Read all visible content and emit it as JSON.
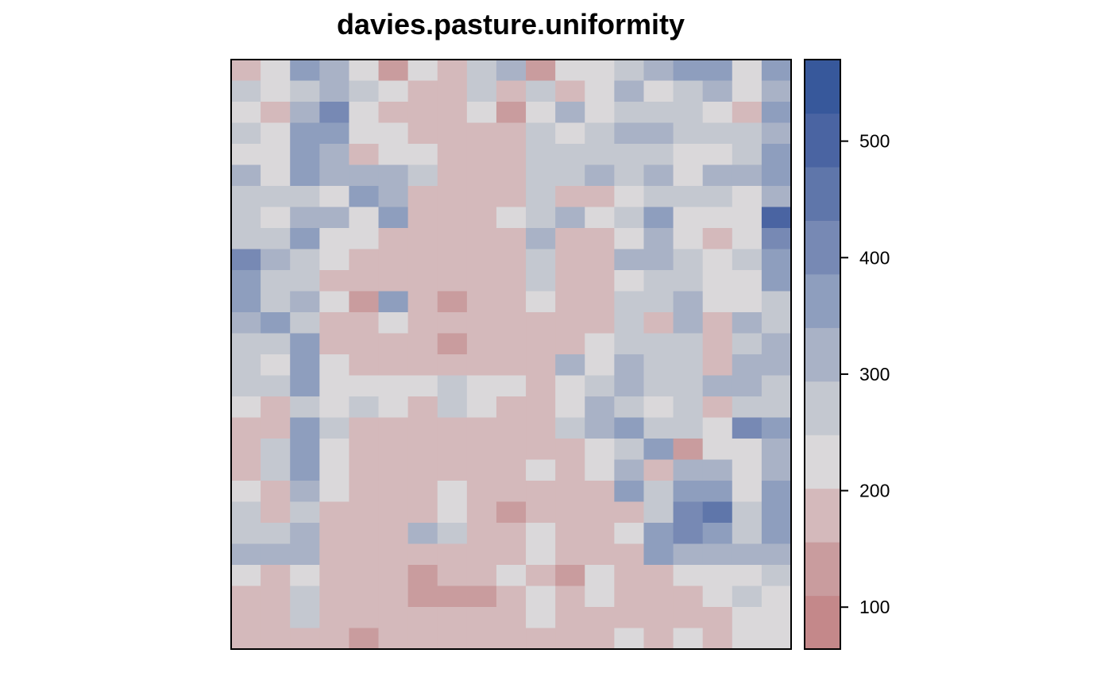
{
  "chart_data": {
    "type": "heatmap",
    "title": "davies.pasture.uniformity",
    "colorbar": {
      "ticks": [
        100,
        200,
        300,
        400,
        500
      ],
      "range": [
        64,
        570
      ],
      "bins": 11,
      "colors": [
        "#c4888a",
        "#c99c9e",
        "#d4b9bb",
        "#dad8da",
        "#c4c8d0",
        "#a9b2c6",
        "#8e9ebe",
        "#7789b4",
        "#5f76aa",
        "#4a64a2",
        "#37589b"
      ]
    },
    "grid": {
      "n_cols": 19,
      "n_rows": 28,
      "values": [
        [
          190,
          230,
          340,
          300,
          230,
          150,
          230,
          190,
          250,
          300,
          150,
          230,
          230,
          250,
          320,
          340,
          340,
          230,
          380
        ],
        [
          260,
          230,
          280,
          300,
          280,
          230,
          190,
          170,
          280,
          190,
          280,
          190,
          230,
          300,
          230,
          260,
          330,
          230,
          300
        ],
        [
          240,
          190,
          300,
          410,
          230,
          190,
          190,
          190,
          230,
          150,
          230,
          300,
          230,
          260,
          280,
          260,
          230,
          190,
          380
        ],
        [
          260,
          230,
          380,
          380,
          230,
          230,
          190,
          160,
          160,
          160,
          260,
          230,
          260,
          300,
          300,
          260,
          260,
          260,
          300
        ],
        [
          230,
          230,
          340,
          300,
          190,
          230,
          230,
          170,
          170,
          170,
          260,
          280,
          260,
          260,
          260,
          240,
          240,
          260,
          380
        ],
        [
          300,
          230,
          340,
          300,
          300,
          310,
          260,
          190,
          170,
          170,
          260,
          260,
          300,
          260,
          300,
          230,
          300,
          330,
          380
        ],
        [
          260,
          250,
          260,
          230,
          340,
          300,
          190,
          190,
          190,
          190,
          280,
          190,
          190,
          230,
          260,
          260,
          260,
          230,
          300
        ],
        [
          280,
          230,
          300,
          300,
          230,
          340,
          190,
          160,
          190,
          230,
          260,
          300,
          230,
          280,
          340,
          230,
          230,
          230,
          520
        ],
        [
          260,
          260,
          380,
          230,
          230,
          190,
          170,
          160,
          170,
          190,
          300,
          190,
          190,
          230,
          300,
          230,
          190,
          230,
          400
        ],
        [
          420,
          300,
          260,
          230,
          190,
          190,
          160,
          160,
          160,
          160,
          260,
          160,
          160,
          300,
          300,
          260,
          230,
          260,
          380
        ],
        [
          340,
          260,
          260,
          170,
          170,
          190,
          160,
          160,
          160,
          190,
          260,
          160,
          160,
          230,
          260,
          260,
          230,
          230,
          380
        ],
        [
          340,
          260,
          300,
          230,
          130,
          340,
          160,
          120,
          160,
          190,
          230,
          160,
          190,
          260,
          260,
          300,
          230,
          230,
          260
        ],
        [
          300,
          340,
          260,
          190,
          160,
          230,
          170,
          160,
          160,
          170,
          190,
          190,
          190,
          260,
          190,
          300,
          190,
          300,
          260
        ],
        [
          260,
          260,
          340,
          170,
          170,
          170,
          170,
          130,
          160,
          190,
          190,
          190,
          230,
          260,
          260,
          260,
          160,
          260,
          300
        ],
        [
          260,
          230,
          340,
          230,
          190,
          190,
          190,
          190,
          160,
          190,
          190,
          300,
          230,
          300,
          260,
          260,
          190,
          300,
          300
        ],
        [
          260,
          260,
          380,
          230,
          230,
          230,
          230,
          260,
          230,
          230,
          160,
          230,
          260,
          300,
          260,
          260,
          300,
          300,
          260
        ],
        [
          230,
          190,
          260,
          230,
          260,
          230,
          190,
          260,
          230,
          190,
          190,
          230,
          300,
          260,
          230,
          260,
          190,
          260,
          260
        ],
        [
          190,
          190,
          340,
          260,
          190,
          160,
          190,
          190,
          170,
          190,
          190,
          260,
          300,
          340,
          260,
          260,
          230,
          420,
          340
        ],
        [
          190,
          260,
          340,
          230,
          190,
          160,
          190,
          160,
          190,
          190,
          190,
          190,
          230,
          260,
          340,
          130,
          230,
          230,
          300
        ],
        [
          190,
          260,
          380,
          230,
          190,
          190,
          190,
          190,
          190,
          160,
          230,
          160,
          230,
          300,
          190,
          300,
          300,
          230,
          300
        ],
        [
          230,
          190,
          300,
          230,
          160,
          190,
          190,
          230,
          190,
          190,
          190,
          160,
          190,
          380,
          260,
          340,
          340,
          230,
          340
        ],
        [
          260,
          190,
          260,
          170,
          190,
          190,
          190,
          230,
          190,
          130,
          190,
          190,
          160,
          190,
          260,
          420,
          450,
          260,
          340
        ],
        [
          260,
          260,
          300,
          170,
          160,
          190,
          300,
          260,
          190,
          190,
          230,
          190,
          160,
          230,
          340,
          420,
          340,
          260,
          340
        ],
        [
          300,
          300,
          300,
          190,
          160,
          160,
          190,
          190,
          190,
          190,
          230,
          160,
          190,
          160,
          340,
          300,
          300,
          300,
          300
        ],
        [
          230,
          170,
          230,
          190,
          160,
          160,
          130,
          160,
          160,
          230,
          190,
          130,
          230,
          190,
          190,
          230,
          230,
          230,
          260
        ],
        [
          190,
          170,
          260,
          170,
          170,
          170,
          130,
          130,
          130,
          160,
          230,
          190,
          230,
          190,
          190,
          190,
          230,
          260,
          230
        ],
        [
          170,
          170,
          260,
          170,
          160,
          190,
          190,
          190,
          190,
          160,
          230,
          190,
          160,
          190,
          190,
          190,
          190,
          230,
          230
        ],
        [
          170,
          160,
          160,
          160,
          130,
          190,
          190,
          190,
          190,
          160,
          190,
          190,
          160,
          230,
          190,
          230,
          190,
          230,
          230
        ]
      ]
    }
  }
}
